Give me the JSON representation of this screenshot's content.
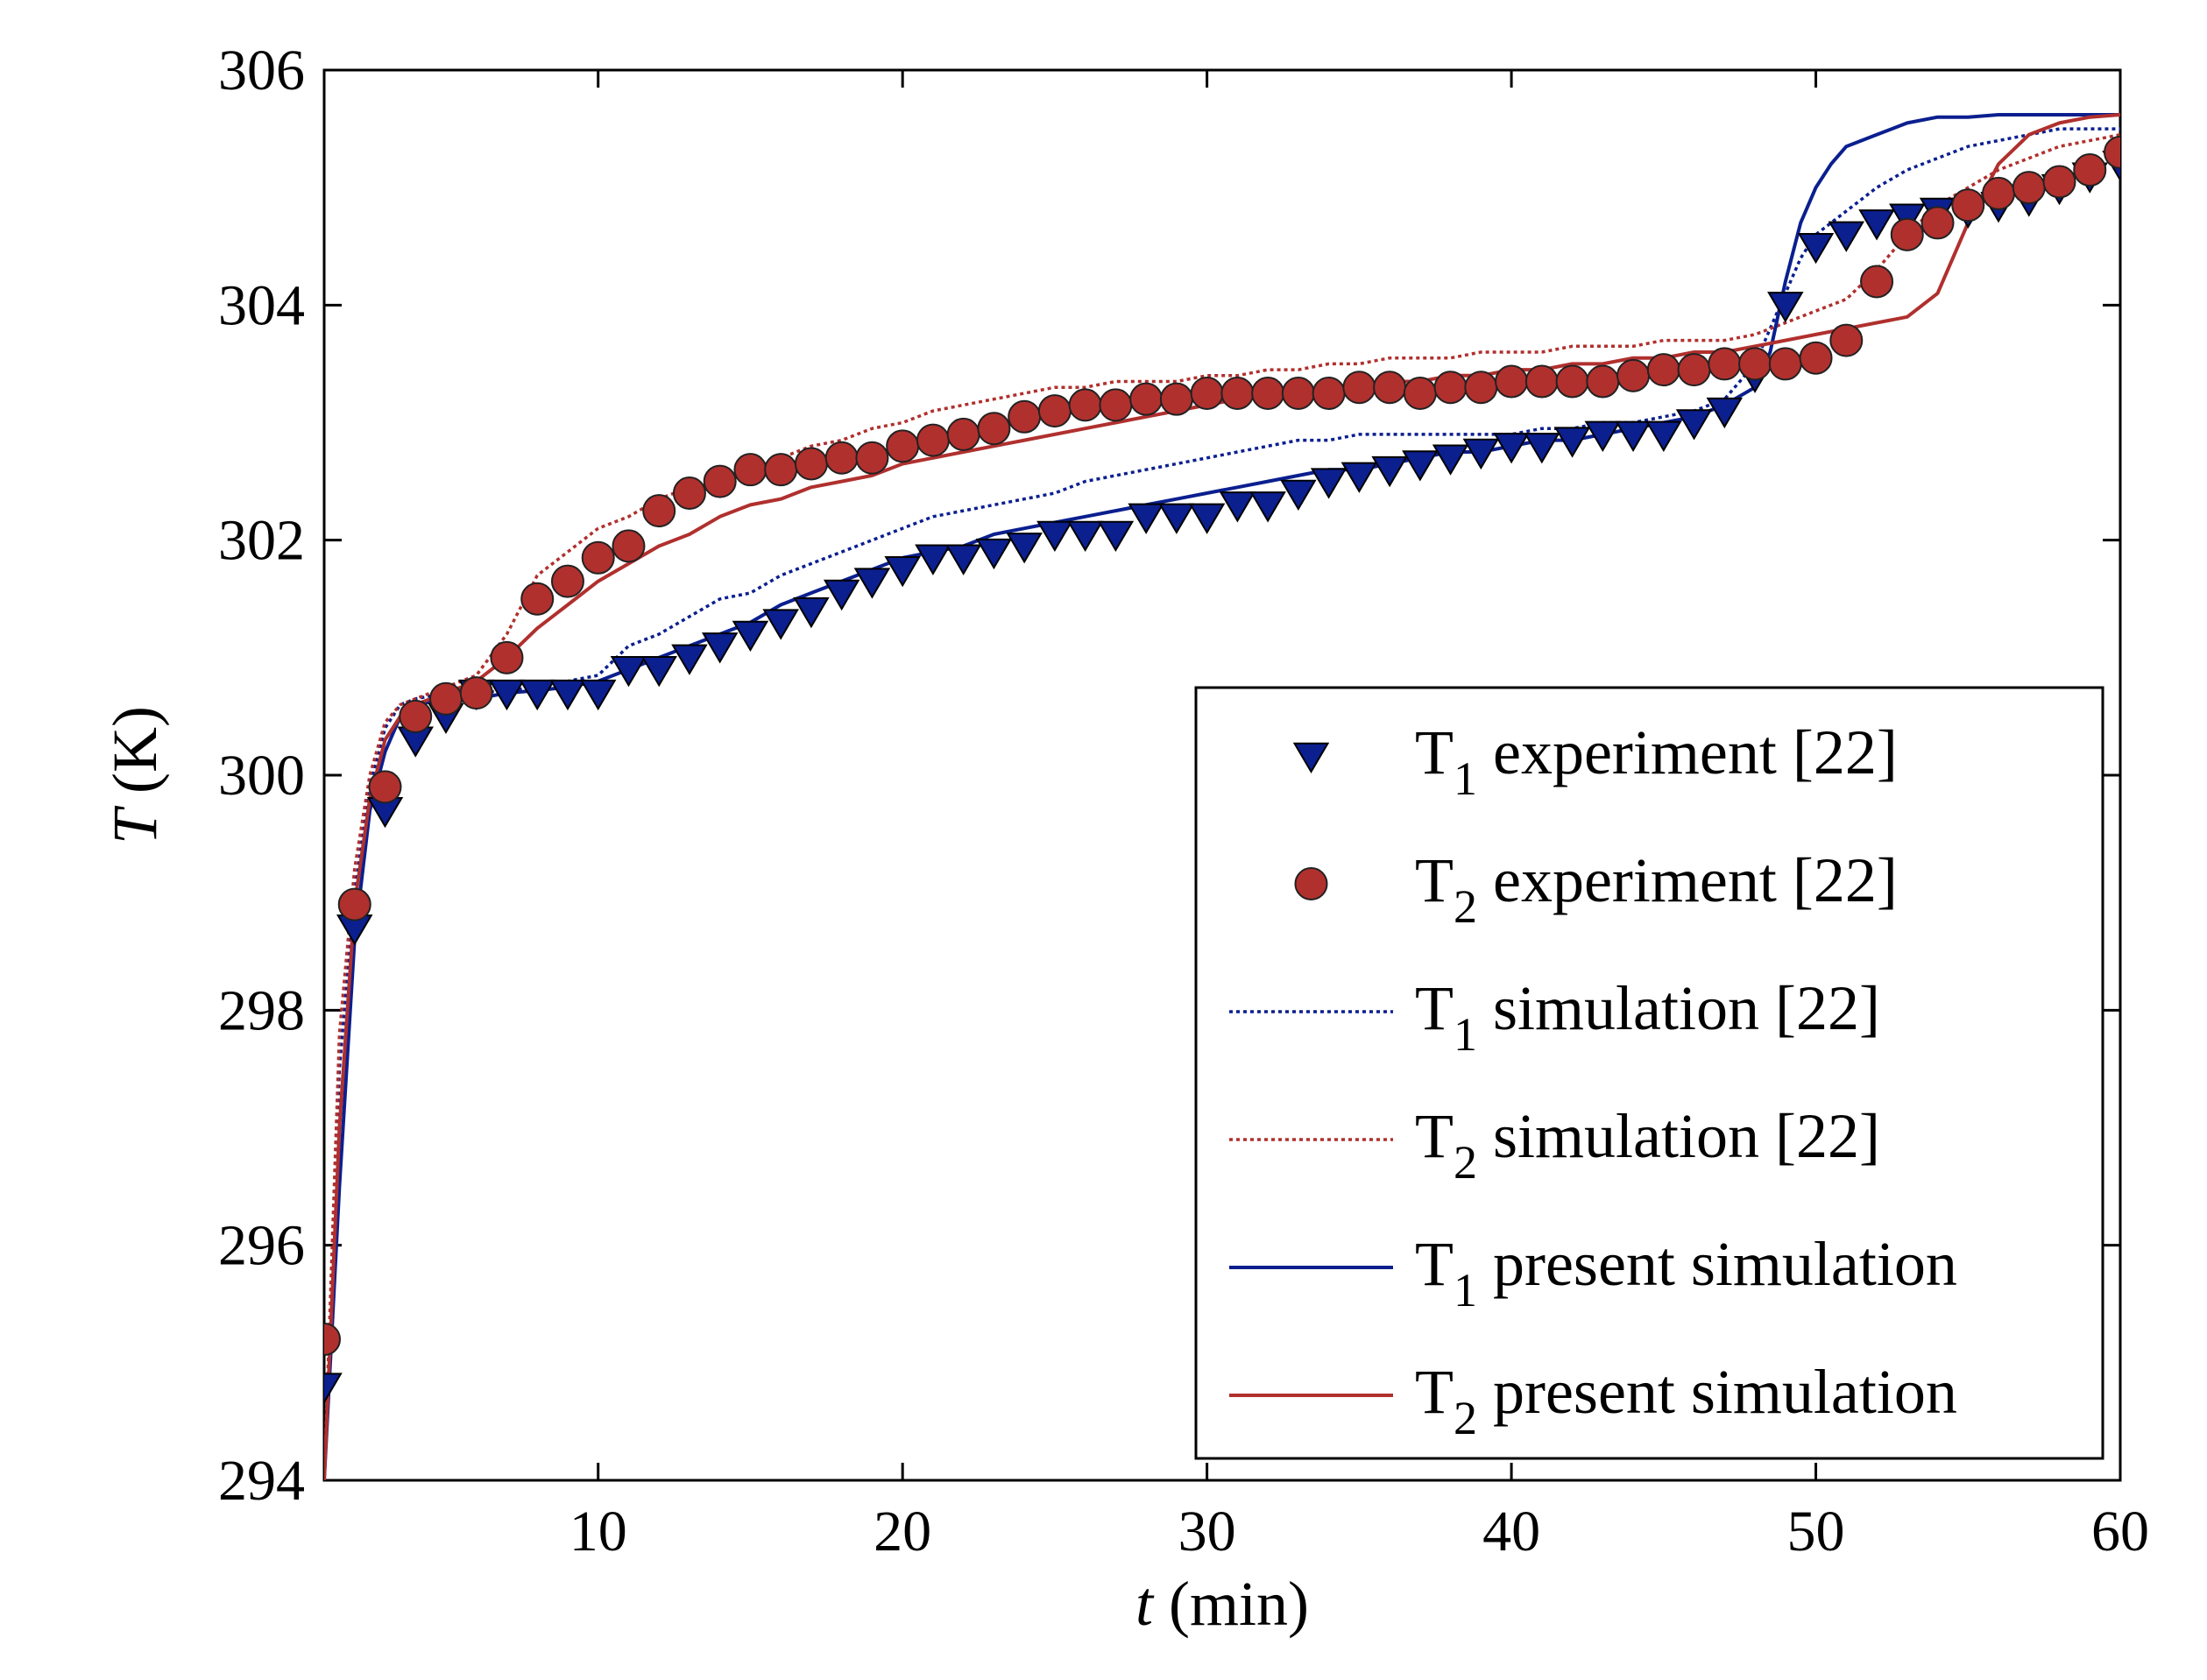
{
  "chart_data": {
    "type": "line",
    "title": "",
    "xlabel": {
      "var": "t",
      "unit": " (min)"
    },
    "ylabel": {
      "var": "T",
      "unit": " (K)"
    },
    "xlim": [
      1,
      60
    ],
    "ylim": [
      294,
      306
    ],
    "xticks": [
      10,
      20,
      30,
      40,
      50,
      60
    ],
    "yticks": [
      294,
      296,
      298,
      300,
      302,
      304,
      306
    ],
    "grid": false,
    "legend_position": "lower-right",
    "series": [
      {
        "name": "T1 experiment [22]",
        "label_main": "T",
        "label_sub": "1",
        "label_rest": " experiment  [22]",
        "kind": "marker-triangle-down",
        "color": "#0b1f8f",
        "x": [
          1,
          2,
          3,
          4,
          5,
          6,
          7,
          8,
          9,
          10,
          11,
          12,
          13,
          14,
          15,
          16,
          17,
          18,
          19,
          20,
          21,
          22,
          23,
          24,
          25,
          26,
          27,
          28,
          29,
          30,
          31,
          32,
          33,
          34,
          35,
          36,
          37,
          38,
          39,
          40,
          41,
          42,
          43,
          44,
          45,
          46,
          47,
          48,
          49,
          50,
          51,
          52,
          53,
          54,
          55,
          56,
          57,
          58,
          59,
          60
        ],
        "y": [
          294.8,
          298.7,
          299.7,
          300.3,
          300.5,
          300.7,
          300.7,
          300.7,
          300.7,
          300.7,
          300.9,
          300.9,
          301.0,
          301.1,
          301.2,
          301.3,
          301.4,
          301.55,
          301.65,
          301.75,
          301.85,
          301.85,
          301.9,
          301.95,
          302.05,
          302.05,
          302.05,
          302.2,
          302.2,
          302.2,
          302.3,
          302.3,
          302.4,
          302.5,
          302.55,
          302.6,
          302.65,
          302.7,
          302.75,
          302.8,
          302.8,
          302.85,
          302.9,
          302.9,
          302.9,
          303.0,
          303.1,
          303.4,
          304.0,
          304.5,
          304.6,
          304.7,
          304.75,
          304.8,
          304.8,
          304.85,
          304.9,
          305.0,
          305.1,
          305.2
        ]
      },
      {
        "name": "T2 experiment [22]",
        "label_main": "T",
        "label_sub": "2",
        "label_rest": " experiment  [22]",
        "kind": "marker-circle",
        "color": "#b0302e",
        "x": [
          1,
          2,
          3,
          4,
          5,
          6,
          7,
          8,
          9,
          10,
          11,
          12,
          13,
          14,
          15,
          16,
          17,
          18,
          19,
          20,
          21,
          22,
          23,
          24,
          25,
          26,
          27,
          28,
          29,
          30,
          31,
          32,
          33,
          34,
          35,
          36,
          37,
          38,
          39,
          40,
          41,
          42,
          43,
          44,
          45,
          46,
          47,
          48,
          49,
          50,
          51,
          52,
          53,
          54,
          55,
          56,
          57,
          58,
          59,
          60
        ],
        "y": [
          295.2,
          298.9,
          299.9,
          300.5,
          300.65,
          300.7,
          301.0,
          301.5,
          301.65,
          301.85,
          301.95,
          302.25,
          302.4,
          302.5,
          302.6,
          302.6,
          302.65,
          302.7,
          302.7,
          302.8,
          302.85,
          302.9,
          302.95,
          303.05,
          303.1,
          303.15,
          303.15,
          303.2,
          303.2,
          303.25,
          303.25,
          303.25,
          303.25,
          303.25,
          303.3,
          303.3,
          303.25,
          303.3,
          303.3,
          303.35,
          303.35,
          303.35,
          303.35,
          303.4,
          303.45,
          303.45,
          303.5,
          303.5,
          303.5,
          303.55,
          303.7,
          304.2,
          304.6,
          304.7,
          304.85,
          304.95,
          305.0,
          305.05,
          305.15,
          305.3
        ]
      },
      {
        "name": "T1 simulation [22]",
        "label_main": "T",
        "label_sub": "1",
        "label_rest": " simulation  [22]",
        "kind": "dotted",
        "color": "#0b1f8f",
        "x": [
          1,
          1.5,
          2,
          2.5,
          3,
          3.5,
          4,
          5,
          6,
          7,
          8,
          9,
          10,
          11,
          12,
          13,
          14,
          15,
          16,
          17,
          18,
          19,
          20,
          21,
          22,
          23,
          24,
          25,
          26,
          27,
          28,
          29,
          30,
          31,
          32,
          33,
          34,
          35,
          36,
          37,
          38,
          39,
          40,
          41,
          42,
          43,
          44,
          45,
          46,
          47,
          48,
          48.5,
          49,
          49.5,
          50,
          51,
          52,
          53,
          54,
          55,
          56,
          57,
          58,
          59,
          60
        ],
        "y": [
          294.0,
          297.5,
          299.0,
          299.9,
          300.4,
          300.6,
          300.65,
          300.7,
          300.7,
          300.72,
          300.75,
          300.8,
          300.85,
          301.1,
          301.2,
          301.35,
          301.5,
          301.55,
          301.7,
          301.8,
          301.9,
          302.0,
          302.1,
          302.2,
          302.25,
          302.3,
          302.35,
          302.4,
          302.5,
          302.55,
          302.6,
          302.65,
          302.7,
          302.75,
          302.8,
          302.85,
          302.85,
          302.9,
          302.9,
          302.9,
          302.9,
          302.9,
          302.9,
          302.95,
          302.95,
          303.0,
          303.0,
          303.05,
          303.1,
          303.2,
          303.5,
          303.8,
          304.1,
          304.4,
          304.6,
          304.8,
          305.0,
          305.15,
          305.25,
          305.35,
          305.4,
          305.45,
          305.5,
          305.5,
          305.5
        ]
      },
      {
        "name": "T2 simulation [22]",
        "label_main": "T",
        "label_sub": "2",
        "label_rest": " simulation  [22]",
        "kind": "dotted",
        "color": "#b0302e",
        "x": [
          1,
          1.5,
          2,
          2.5,
          3,
          3.5,
          4,
          5,
          6,
          7,
          8,
          9,
          10,
          11,
          12,
          13,
          14,
          15,
          16,
          17,
          18,
          19,
          20,
          21,
          22,
          23,
          24,
          25,
          26,
          27,
          28,
          29,
          30,
          31,
          32,
          33,
          34,
          35,
          36,
          37,
          38,
          39,
          40,
          41,
          42,
          43,
          44,
          45,
          46,
          47,
          48,
          49,
          50,
          51,
          52,
          53,
          54,
          55,
          56,
          57,
          58,
          59,
          60
        ],
        "y": [
          294.0,
          297.8,
          299.2,
          300.0,
          300.45,
          300.6,
          300.65,
          300.75,
          300.85,
          301.2,
          301.7,
          301.9,
          302.1,
          302.2,
          302.35,
          302.45,
          302.5,
          302.6,
          302.7,
          302.8,
          302.85,
          302.95,
          303.0,
          303.1,
          303.15,
          303.2,
          303.25,
          303.3,
          303.3,
          303.35,
          303.35,
          303.35,
          303.4,
          303.4,
          303.45,
          303.45,
          303.5,
          303.5,
          303.55,
          303.55,
          303.55,
          303.6,
          303.6,
          303.6,
          303.65,
          303.65,
          303.65,
          303.7,
          303.7,
          303.7,
          303.75,
          303.85,
          303.95,
          304.05,
          304.3,
          304.6,
          304.85,
          305.0,
          305.15,
          305.25,
          305.35,
          305.4,
          305.45
        ]
      },
      {
        "name": "T1 present simulation",
        "label_main": "T",
        "label_sub": "1",
        "label_rest": " present simulation",
        "kind": "solid",
        "color": "#0b1f8f",
        "x": [
          1,
          1.5,
          2,
          2.5,
          3,
          3.5,
          4,
          5,
          6,
          7,
          8,
          9,
          10,
          11,
          12,
          13,
          14,
          15,
          16,
          17,
          18,
          19,
          20,
          21,
          22,
          23,
          24,
          25,
          26,
          27,
          28,
          29,
          30,
          31,
          32,
          33,
          34,
          35,
          36,
          37,
          38,
          39,
          40,
          41,
          42,
          43,
          44,
          45,
          46,
          47,
          48,
          48.5,
          49,
          49.5,
          50,
          50.5,
          51,
          52,
          53,
          54,
          55,
          56,
          57,
          58,
          59,
          60
        ],
        "y": [
          294.0,
          296.5,
          298.6,
          299.7,
          300.2,
          300.5,
          300.6,
          300.65,
          300.65,
          300.7,
          300.72,
          300.75,
          300.8,
          300.9,
          301.0,
          301.1,
          301.2,
          301.3,
          301.45,
          301.55,
          301.65,
          301.75,
          301.85,
          301.9,
          301.95,
          302.05,
          302.1,
          302.15,
          302.2,
          302.25,
          302.3,
          302.35,
          302.4,
          302.45,
          302.5,
          302.55,
          302.6,
          302.6,
          302.65,
          302.7,
          302.75,
          302.75,
          302.8,
          302.85,
          302.85,
          302.9,
          302.95,
          303.0,
          303.05,
          303.15,
          303.3,
          303.6,
          304.2,
          304.7,
          305.0,
          305.2,
          305.35,
          305.45,
          305.55,
          305.6,
          305.6,
          305.62,
          305.62,
          305.62,
          305.62,
          305.62
        ]
      },
      {
        "name": "T2 present simulation",
        "label_main": "T",
        "label_sub": "2",
        "label_rest": " present simulation",
        "kind": "solid",
        "color": "#b0302e",
        "x": [
          1,
          1.5,
          2,
          2.5,
          3,
          3.5,
          4,
          5,
          6,
          7,
          8,
          9,
          10,
          11,
          12,
          13,
          14,
          15,
          16,
          17,
          18,
          19,
          20,
          21,
          22,
          23,
          24,
          25,
          26,
          27,
          28,
          29,
          30,
          31,
          32,
          33,
          34,
          35,
          36,
          37,
          38,
          39,
          40,
          41,
          42,
          43,
          44,
          45,
          46,
          47,
          48,
          49,
          50,
          51,
          52,
          53,
          54,
          55,
          56,
          57,
          58,
          59,
          60
        ],
        "y": [
          294.0,
          297.0,
          298.9,
          299.8,
          300.3,
          300.5,
          300.6,
          300.7,
          300.8,
          301.0,
          301.25,
          301.45,
          301.65,
          301.8,
          301.95,
          302.05,
          302.2,
          302.3,
          302.35,
          302.45,
          302.5,
          302.55,
          302.65,
          302.7,
          302.75,
          302.8,
          302.85,
          302.9,
          302.95,
          303.0,
          303.05,
          303.1,
          303.15,
          303.2,
          303.25,
          303.25,
          303.3,
          303.3,
          303.35,
          303.35,
          303.4,
          303.4,
          303.45,
          303.45,
          303.5,
          303.5,
          303.55,
          303.55,
          303.6,
          303.6,
          303.65,
          303.7,
          303.75,
          303.8,
          303.85,
          303.9,
          304.1,
          304.7,
          305.2,
          305.45,
          305.55,
          305.6,
          305.62
        ]
      }
    ]
  }
}
